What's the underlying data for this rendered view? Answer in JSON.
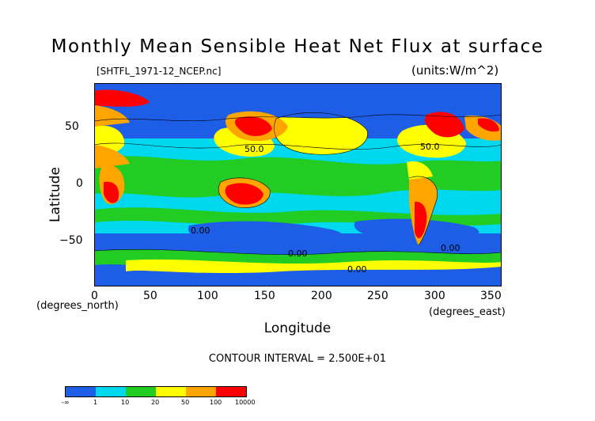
{
  "title": "Monthly Mean Sensible Heat Net Flux at surface",
  "file_label": "[SHTFL_1971-12_NCEP.nc]",
  "units_label": "(units:W/m^2)",
  "y_axis": {
    "label": "Latitude",
    "unit_label": "(degrees_north)",
    "ticks": [
      "50",
      "0",
      "−50"
    ]
  },
  "x_axis": {
    "label": "Longitude",
    "unit_label": "(degrees_east)",
    "ticks": [
      "0",
      "50",
      "100",
      "150",
      "200",
      "250",
      "300",
      "350"
    ]
  },
  "contour_labels": [
    "50.0",
    "50.0",
    "0.00",
    "0.00",
    "0.00",
    "0.00"
  ],
  "contour_interval": "CONTOUR INTERVAL = 2.500E+01",
  "colorbar": {
    "labels": [
      "-∞",
      "1",
      "10",
      "20",
      "50",
      "100",
      "10000"
    ],
    "colors": [
      "#1e5ee6",
      "#1e5ee6",
      "#00d8f0",
      "#00d8f0",
      "#22cc22",
      "#22cc22",
      "#ffff00",
      "#ffff00",
      "#ffa500",
      "#ffa500",
      "#ff0000",
      "#ff0000"
    ]
  },
  "colors": {
    "ocean_low": "#1e5ee6",
    "cyan": "#00d8f0",
    "green": "#22cc22",
    "yellow": "#ffff00",
    "orange": "#ffa500",
    "red": "#ff0000"
  }
}
